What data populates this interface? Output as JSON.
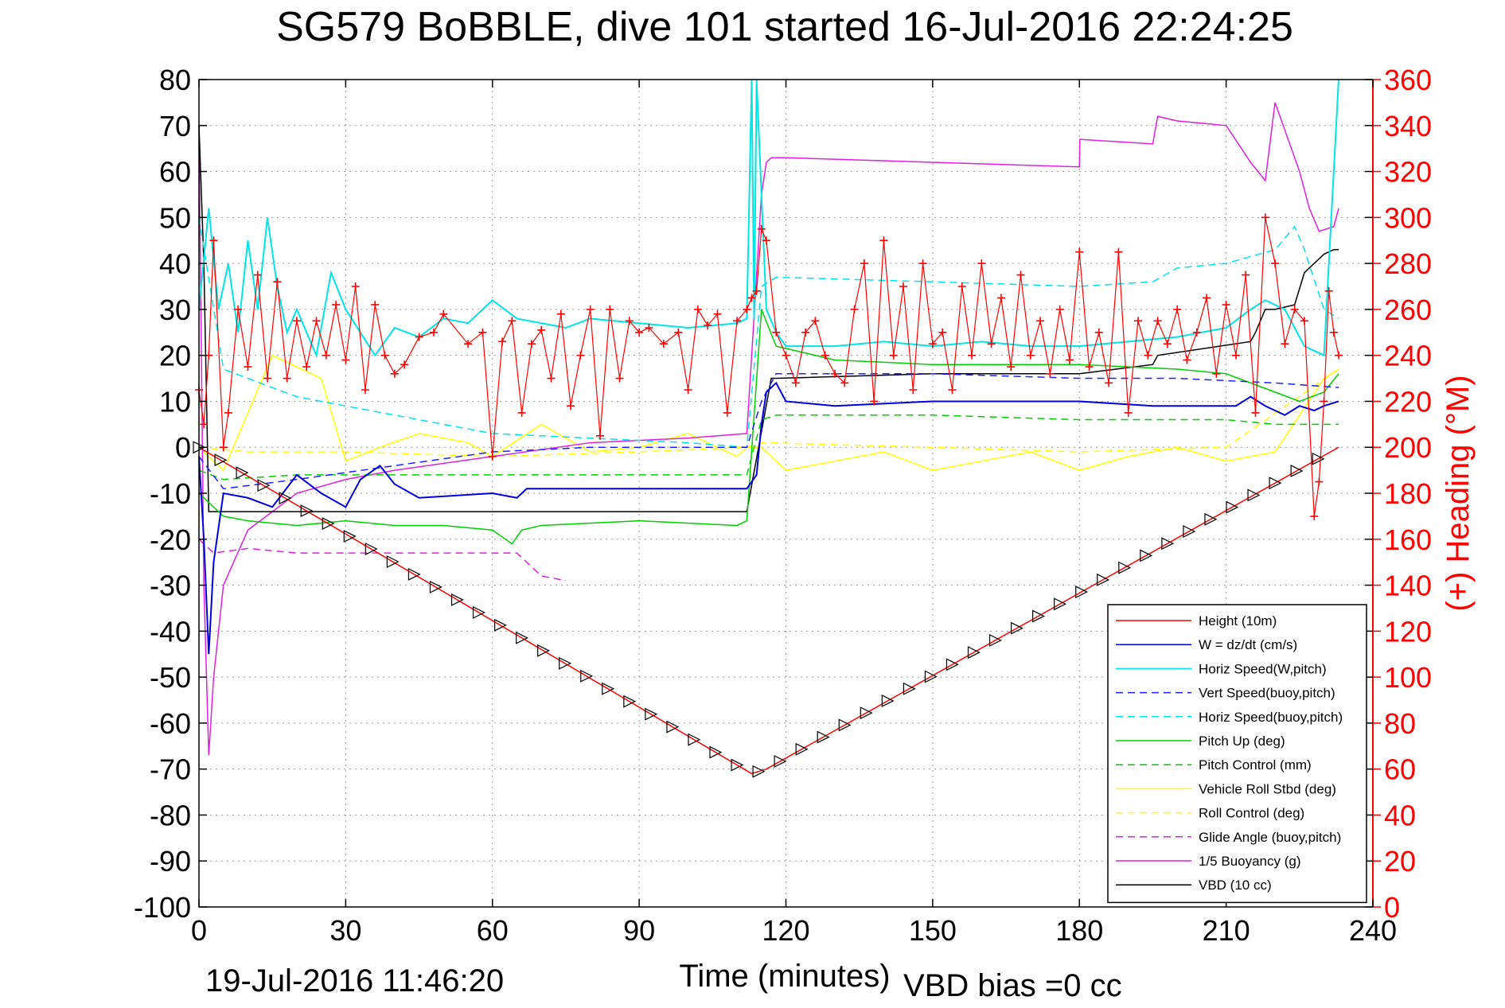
{
  "chart_data": {
    "type": "line",
    "title": "SG579 BoBBLE, dive 101 started 16-Jul-2016 22:24:25",
    "xlabel": "Time (minutes)",
    "ylabel": "",
    "y2label": "(+) Heading (°M)",
    "footer_left": "19-Jul-2016 11:46:20",
    "footer_right": "VBD bias =0 cc",
    "xlim": [
      0,
      240
    ],
    "ylim": [
      -100,
      80
    ],
    "y2lim": [
      0,
      360
    ],
    "xticks": [
      0,
      30,
      60,
      90,
      120,
      150,
      180,
      210,
      240
    ],
    "yticks": [
      -100,
      -90,
      -80,
      -70,
      -60,
      -50,
      -40,
      -30,
      -20,
      -10,
      0,
      10,
      20,
      30,
      40,
      50,
      60,
      70,
      80
    ],
    "y2ticks": [
      0,
      20,
      40,
      60,
      80,
      100,
      120,
      140,
      160,
      180,
      200,
      220,
      240,
      260,
      280,
      300,
      320,
      340,
      360
    ],
    "grid": true,
    "legend_position": "bottom-right",
    "colors": {
      "height": "#ff0000",
      "w": "#0000e0",
      "horiz_w": "#00e5e5",
      "vert_buoy": "#2020ff",
      "horiz_buoy": "#00e5e5",
      "pitch": "#00d000",
      "pitch_ctrl": "#00d000",
      "roll": "#ffff00",
      "roll_ctrl": "#ffff00",
      "glide": "#e020e0",
      "buoyancy": "#e020e0",
      "vbd": "#000000",
      "heading": "#ff0000",
      "heading_axis": "#ff0000"
    },
    "series": [
      {
        "key": "height",
        "name": "Height (10m)",
        "style": "solid",
        "x": [
          0,
          113,
          116,
          233
        ],
        "y": [
          0,
          -71,
          -70,
          0
        ]
      },
      {
        "key": "w",
        "name": "W = dz/dt (cm/s)",
        "style": "solid",
        "x": [
          0,
          1,
          2,
          3,
          5,
          10,
          15,
          20,
          25,
          30,
          33,
          37,
          40,
          45,
          60,
          65,
          67,
          70,
          90,
          112,
          114,
          115,
          116,
          118,
          120,
          130,
          150,
          180,
          195,
          205,
          212,
          215,
          218,
          222,
          225,
          228,
          230,
          233
        ],
        "y": [
          -2,
          -20,
          -45,
          -25,
          -10,
          -11,
          -13,
          -6,
          -10,
          -13,
          -7,
          -4,
          -8,
          -11,
          -10,
          -11,
          -9,
          -9,
          -9,
          -9,
          -6,
          5,
          12,
          14,
          10,
          9,
          10,
          10,
          9,
          9,
          9,
          11,
          9,
          7,
          9,
          8,
          9,
          10
        ]
      },
      {
        "key": "horiz_w",
        "name": "Horiz Speed(W,pitch)",
        "style": "solid",
        "x": [
          0,
          2,
          4,
          6,
          8,
          10,
          12,
          14,
          16,
          18,
          20,
          24,
          27,
          30,
          33,
          36,
          38,
          40,
          45,
          50,
          55,
          60,
          65,
          70,
          75,
          80,
          90,
          100,
          110,
          112,
          113,
          113.5,
          114,
          116,
          118,
          120,
          130,
          140,
          150,
          160,
          170,
          180,
          190,
          200,
          210,
          215,
          218,
          222,
          226,
          230,
          233
        ],
        "y": [
          30,
          52,
          30,
          40,
          25,
          45,
          30,
          50,
          35,
          25,
          30,
          20,
          38,
          30,
          25,
          20,
          23,
          26,
          24,
          28,
          27,
          32,
          28,
          27,
          26,
          28,
          27,
          26,
          27,
          28,
          80,
          28,
          80,
          30,
          25,
          22,
          22,
          23,
          22,
          23,
          22,
          22,
          23,
          24,
          26,
          30,
          32,
          30,
          22,
          20,
          80
        ]
      },
      {
        "key": "vert_buoy",
        "name": "Vert Speed(buoy,pitch)",
        "style": "dashed",
        "x": [
          0,
          5,
          20,
          40,
          60,
          80,
          100,
          112,
          115,
          118,
          130,
          150,
          180,
          200,
          220,
          233
        ],
        "y": [
          -2,
          -9,
          -7,
          -4,
          -1,
          0,
          0,
          0,
          10,
          16,
          16,
          16,
          15,
          15,
          14,
          13
        ]
      },
      {
        "key": "horiz_buoy",
        "name": "Horiz Speed(buoy,pitch)",
        "style": "dashed",
        "x": [
          0,
          5,
          20,
          40,
          60,
          80,
          100,
          112,
          115,
          118,
          150,
          180,
          195,
          200,
          210,
          220,
          224,
          226,
          230,
          233
        ],
        "y": [
          50,
          17,
          11,
          7,
          3,
          2,
          1,
          0,
          35,
          37,
          36,
          35,
          36,
          39,
          40,
          43,
          48,
          43,
          30,
          28
        ]
      },
      {
        "key": "pitch",
        "name": "Pitch Up (deg)",
        "style": "solid",
        "x": [
          0,
          5,
          10,
          20,
          30,
          40,
          50,
          60,
          64,
          66,
          70,
          90,
          110,
          112,
          115,
          118,
          130,
          150,
          180,
          200,
          210,
          220,
          225,
          230,
          233
        ],
        "y": [
          -10,
          -15,
          -16,
          -17,
          -16,
          -17,
          -17,
          -18,
          -21,
          -18,
          -17,
          -16,
          -17,
          -16,
          30,
          22,
          19,
          18,
          18,
          17,
          16,
          12,
          10,
          12,
          16
        ]
      },
      {
        "key": "pitch_ctrl",
        "name": "Pitch Control (mm)",
        "style": "dashed",
        "x": [
          0,
          5,
          20,
          40,
          60,
          80,
          100,
          112,
          115,
          118,
          130,
          150,
          180,
          200,
          210,
          220,
          230,
          233
        ],
        "y": [
          -5,
          -7,
          -6,
          -6,
          -6,
          -6,
          -6,
          -6,
          6,
          7,
          7,
          7,
          6,
          6,
          6,
          5,
          5,
          5
        ]
      },
      {
        "key": "roll",
        "name": "Vehicle Roll Stbd (deg)",
        "style": "solid",
        "x": [
          0,
          5,
          15,
          25,
          30,
          37,
          45,
          55,
          60,
          70,
          80,
          90,
          100,
          110,
          112,
          115,
          120,
          130,
          140,
          150,
          160,
          170,
          180,
          190,
          200,
          210,
          220,
          230,
          233
        ],
        "y": [
          0,
          -5,
          20,
          15,
          -3,
          0,
          3,
          1,
          -2,
          5,
          -1,
          0,
          3,
          -2,
          0,
          0,
          -5,
          -3,
          -1,
          -5,
          -3,
          -1,
          -5,
          -2,
          0,
          -3,
          -1,
          15,
          17
        ]
      },
      {
        "key": "roll_ctrl",
        "name": "Roll Control (deg)",
        "style": "dashed",
        "x": [
          0,
          10,
          30,
          60,
          90,
          112,
          115,
          150,
          180,
          210,
          233
        ],
        "y": [
          0,
          -1,
          -1,
          -2,
          -1,
          0,
          1,
          0,
          -1,
          0,
          17
        ]
      },
      {
        "key": "glide",
        "name": "Glide Angle (buoy,pitch)",
        "style": "dashed",
        "x": [
          0,
          3,
          10,
          20,
          30,
          40,
          50,
          60,
          65,
          70,
          75
        ],
        "y": [
          -20,
          -23,
          -22,
          -23,
          -23,
          -23,
          -23,
          -23,
          -23,
          -28,
          -29
        ]
      },
      {
        "key": "buoyancy",
        "name": "1/5 Buoyancy (g)",
        "style": "solid",
        "x": [
          0,
          1,
          2,
          3,
          5,
          10,
          20,
          30,
          40,
          60,
          80,
          100,
          112,
          113,
          115,
          116,
          117,
          120,
          150,
          180,
          180.1,
          195,
          196,
          200,
          210,
          215,
          218,
          220,
          225,
          227,
          229,
          232,
          233
        ],
        "y": [
          70,
          -30,
          -67,
          -50,
          -30,
          -18,
          -10,
          -7,
          -5,
          -2,
          1,
          2,
          3,
          20,
          55,
          62,
          63,
          63,
          62,
          61,
          67,
          66,
          72,
          71,
          70,
          62,
          58,
          75,
          60,
          52,
          47,
          48,
          52
        ]
      },
      {
        "key": "vbd",
        "name": "VBD (10 cc)",
        "style": "solid",
        "x": [
          0,
          1,
          2,
          10,
          30,
          60,
          90,
          112,
          117,
          118,
          150,
          180,
          195,
          196,
          215,
          216,
          218,
          220,
          224,
          226,
          230,
          232,
          233
        ],
        "y": [
          70,
          40,
          -14,
          -14,
          -14,
          -14,
          -14,
          -14,
          15,
          15,
          16,
          16,
          18,
          20,
          23,
          25,
          30,
          30,
          31,
          38,
          42,
          43,
          43
        ]
      }
    ],
    "heading": {
      "name": "(+) Heading",
      "x": [
        0,
        1,
        2,
        3,
        5,
        6,
        8,
        10,
        12,
        14,
        16,
        18,
        20,
        22,
        24,
        26,
        28,
        30,
        32,
        34,
        36,
        38,
        40,
        42,
        45,
        48,
        50,
        55,
        58,
        60,
        62,
        64,
        66,
        68,
        70,
        72,
        74,
        76,
        78,
        80,
        82,
        84,
        86,
        88,
        90,
        92,
        95,
        98,
        100,
        102,
        104,
        106,
        108,
        110,
        112,
        113,
        114,
        115,
        116,
        118,
        120,
        122,
        124,
        126,
        128,
        130,
        132,
        134,
        136,
        138,
        140,
        142,
        144,
        146,
        148,
        150,
        152,
        154,
        156,
        158,
        160,
        162,
        164,
        166,
        168,
        170,
        172,
        174,
        176,
        178,
        180,
        182,
        184,
        186,
        188,
        190,
        192,
        194,
        196,
        198,
        200,
        202,
        204,
        206,
        208,
        210,
        212,
        214,
        216,
        218,
        220,
        222,
        224,
        226,
        228,
        229,
        230,
        231,
        232,
        233
      ],
      "y": [
        225,
        210,
        240,
        290,
        200,
        215,
        260,
        235,
        275,
        230,
        272,
        230,
        255,
        235,
        255,
        240,
        262,
        238,
        270,
        225,
        262,
        240,
        232,
        236,
        248,
        250,
        258,
        245,
        250,
        196,
        246,
        255,
        215,
        245,
        251,
        230,
        258,
        218,
        240,
        260,
        205,
        260,
        230,
        255,
        250,
        252,
        245,
        250,
        225,
        260,
        253,
        258,
        215,
        255,
        260,
        265,
        268,
        295,
        290,
        250,
        240,
        228,
        250,
        255,
        240,
        232,
        228,
        260,
        280,
        220,
        290,
        240,
        270,
        225,
        280,
        245,
        250,
        225,
        270,
        240,
        280,
        245,
        265,
        235,
        275,
        240,
        255,
        232,
        260,
        238,
        285,
        235,
        250,
        228,
        285,
        215,
        255,
        240,
        255,
        245,
        260,
        238,
        250,
        265,
        232,
        262,
        240,
        275,
        215,
        300,
        280,
        245,
        260,
        255,
        170,
        185,
        220,
        268,
        250,
        240
      ]
    }
  }
}
